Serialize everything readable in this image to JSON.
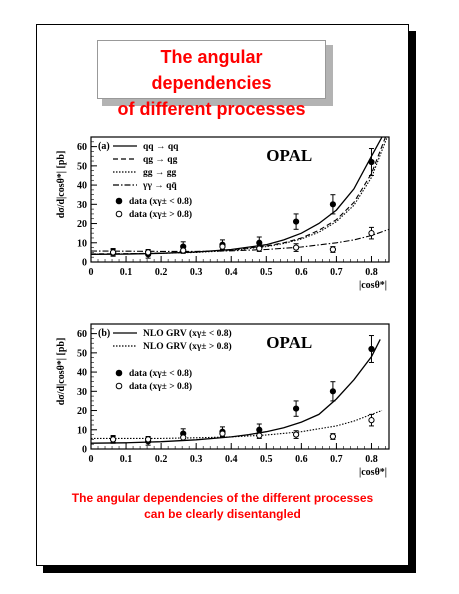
{
  "slide": {
    "title_line1": "The angular dependencies",
    "title_line2": "of different processes",
    "caption_line1": "The angular dependencies of the different processes",
    "caption_line2": "can be clearly disentangled"
  },
  "colors": {
    "title": "#ff0000",
    "shadow": "#000000",
    "ink": "#000000"
  },
  "chart_data": [
    {
      "type": "line",
      "panel_label": "(a)",
      "experiment": "OPAL",
      "xlabel": "|cosθ*|",
      "ylabel": "dσ/d|cosθ*| [pb]",
      "xlim": [
        0,
        0.85
      ],
      "ylim": [
        0,
        65
      ],
      "xticks": [
        0,
        0.1,
        0.2,
        0.3,
        0.4,
        0.5,
        0.6,
        0.7,
        0.8
      ],
      "yticks": [
        0,
        10,
        20,
        30,
        40,
        50,
        60
      ],
      "legend_placement": "top-left",
      "series": [
        {
          "name": "qq → qq",
          "style": "solid",
          "x": [
            0,
            0.1,
            0.2,
            0.3,
            0.4,
            0.5,
            0.55,
            0.6,
            0.65,
            0.7,
            0.75,
            0.8,
            0.83
          ],
          "y": [
            4,
            4.1,
            4.5,
            5.2,
            6.5,
            9,
            11.5,
            15,
            20,
            27,
            38,
            55,
            68
          ]
        },
        {
          "name": "qg → qg",
          "style": "dashed",
          "x": [
            0,
            0.1,
            0.2,
            0.3,
            0.4,
            0.5,
            0.55,
            0.6,
            0.65,
            0.7,
            0.75,
            0.8,
            0.84
          ],
          "y": [
            4.2,
            4.3,
            4.6,
            5.2,
            6.3,
            8.3,
            10,
            12.5,
            16.5,
            22,
            31,
            46,
            66
          ]
        },
        {
          "name": "gg → gg",
          "style": "dotted",
          "x": [
            0,
            0.1,
            0.2,
            0.3,
            0.4,
            0.5,
            0.55,
            0.6,
            0.65,
            0.7,
            0.75,
            0.8,
            0.845
          ],
          "y": [
            4.1,
            4.2,
            4.5,
            5,
            6,
            8,
            9.6,
            12,
            15.5,
            21,
            29.5,
            44,
            66
          ]
        },
        {
          "name": "γγ → qq̄",
          "style": "dashdot",
          "x": [
            0,
            0.1,
            0.2,
            0.3,
            0.4,
            0.5,
            0.6,
            0.7,
            0.75,
            0.8,
            0.85
          ],
          "y": [
            5.7,
            5.6,
            5.5,
            5.5,
            5.8,
            6.5,
            7.8,
            10,
            11.5,
            13.8,
            17
          ]
        }
      ],
      "data_series": [
        {
          "name": "data (xγ± < 0.8)",
          "marker": "filled",
          "x": [
            0.063,
            0.163,
            0.263,
            0.375,
            0.48,
            0.585,
            0.69,
            0.8
          ],
          "y": [
            5,
            4,
            8,
            9,
            10,
            21,
            30,
            52
          ],
          "err": [
            2,
            2,
            2.5,
            2.5,
            3,
            4,
            5,
            7
          ]
        },
        {
          "name": "data (xγ± > 0.8)",
          "marker": "open",
          "x": [
            0.063,
            0.163,
            0.263,
            0.375,
            0.48,
            0.585,
            0.69,
            0.8
          ],
          "y": [
            5,
            5,
            6,
            8,
            7,
            7.5,
            6.5,
            15
          ],
          "err": [
            1.5,
            1.5,
            1.5,
            1.5,
            1.5,
            2,
            1.5,
            3
          ]
        }
      ]
    },
    {
      "type": "line",
      "panel_label": "(b)",
      "experiment": "OPAL",
      "xlabel": "|cosθ*|",
      "ylabel": "dσ/d|cosθ*| [pb]",
      "xlim": [
        0,
        0.85
      ],
      "ylim": [
        0,
        65
      ],
      "xticks": [
        0,
        0.1,
        0.2,
        0.3,
        0.4,
        0.5,
        0.6,
        0.7,
        0.8
      ],
      "yticks": [
        0,
        10,
        20,
        30,
        40,
        50,
        60
      ],
      "legend_placement": "top-left",
      "series": [
        {
          "name": "NLO GRV (xγ± < 0.8)",
          "style": "solid",
          "x": [
            0,
            0.1,
            0.2,
            0.3,
            0.4,
            0.45,
            0.5,
            0.55,
            0.6,
            0.65,
            0.7,
            0.75,
            0.8,
            0.825
          ],
          "y": [
            3,
            3.2,
            3.8,
            4.8,
            6.3,
            7.5,
            9,
            11,
            14,
            18,
            26,
            36,
            48,
            57
          ]
        },
        {
          "name": "NLO GRV (xγ± > 0.8)",
          "style": "dotted",
          "x": [
            0,
            0.1,
            0.2,
            0.3,
            0.4,
            0.5,
            0.6,
            0.7,
            0.75,
            0.8,
            0.83
          ],
          "y": [
            5.5,
            5.5,
            5.5,
            5.8,
            6.3,
            7.3,
            9,
            12,
            14.5,
            18,
            20
          ]
        }
      ],
      "data_series": [
        {
          "name": "data (xγ± < 0.8)",
          "marker": "filled",
          "x": [
            0.063,
            0.163,
            0.263,
            0.375,
            0.48,
            0.585,
            0.69,
            0.8
          ],
          "y": [
            5,
            4,
            8,
            9,
            10,
            21,
            30,
            52
          ],
          "err": [
            2,
            2,
            2.5,
            2.5,
            3,
            4,
            5,
            7
          ]
        },
        {
          "name": "data (xγ± > 0.8)",
          "marker": "open",
          "x": [
            0.063,
            0.163,
            0.263,
            0.375,
            0.48,
            0.585,
            0.69,
            0.8
          ],
          "y": [
            5,
            5,
            6,
            8,
            7,
            7.5,
            6.5,
            15
          ],
          "err": [
            1.5,
            1.5,
            1.5,
            1.5,
            1.5,
            2,
            1.5,
            3
          ]
        }
      ]
    }
  ]
}
